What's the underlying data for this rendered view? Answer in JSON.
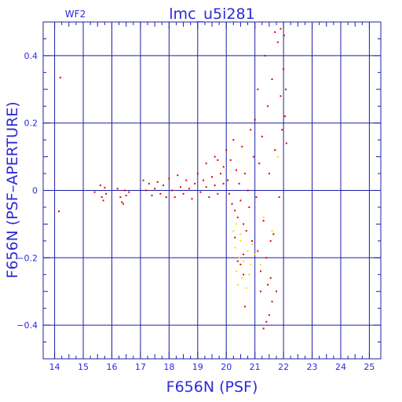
{
  "chart_data": {
    "type": "scatter",
    "title": "lmc_u5i281",
    "tag": "WF2",
    "xlabel": "F656N (PSF)",
    "ylabel": "F656N (PSF–APERTURE)",
    "xlim": [
      13.6,
      25.4
    ],
    "ylim": [
      -0.5,
      0.5
    ],
    "xticks": [
      14,
      15,
      16,
      17,
      18,
      19,
      20,
      21,
      22,
      23,
      24,
      25
    ],
    "yticks": [
      -0.4,
      -0.2,
      0,
      0.2,
      0.4
    ],
    "ytick_labels": [
      "−0.4",
      "−0.2",
      "0",
      "0.2",
      "0.4"
    ],
    "grid": true,
    "colors": {
      "axis": "#1f1fa8",
      "label": "#2b2bd6",
      "main": "#e00000",
      "minor": "#f2e200"
    },
    "series": [
      {
        "color": "#e00000",
        "points": [
          [
            14.2,
            0.335
          ],
          [
            14.15,
            -0.062
          ],
          [
            15.6,
            0.015
          ],
          [
            15.75,
            0.008
          ],
          [
            15.65,
            -0.02
          ],
          [
            15.8,
            -0.01
          ],
          [
            15.4,
            -0.005
          ],
          [
            15.7,
            -0.03
          ],
          [
            16.3,
            -0.02
          ],
          [
            16.4,
            -0.04
          ],
          [
            16.5,
            -0.015
          ],
          [
            16.6,
            -0.005
          ],
          [
            16.2,
            0.005
          ],
          [
            16.45,
            0.0
          ],
          [
            16.35,
            -0.035
          ],
          [
            17.1,
            0.03
          ],
          [
            17.2,
            0.0
          ],
          [
            17.3,
            0.02
          ],
          [
            17.4,
            -0.015
          ],
          [
            17.5,
            0.005
          ],
          [
            17.6,
            0.025
          ],
          [
            17.7,
            -0.01
          ],
          [
            17.8,
            0.015
          ],
          [
            17.9,
            -0.02
          ],
          [
            18.0,
            0.035
          ],
          [
            18.1,
            0.0
          ],
          [
            18.2,
            -0.02
          ],
          [
            18.3,
            0.045
          ],
          [
            18.4,
            0.01
          ],
          [
            18.5,
            -0.01
          ],
          [
            18.6,
            0.03
          ],
          [
            18.7,
            0.005
          ],
          [
            18.8,
            -0.025
          ],
          [
            18.9,
            0.02
          ],
          [
            19.0,
            0.05
          ],
          [
            19.1,
            -0.005
          ],
          [
            19.2,
            0.03
          ],
          [
            19.3,
            0.01
          ],
          [
            19.4,
            -0.02
          ],
          [
            19.5,
            0.04
          ],
          [
            19.6,
            0.015
          ],
          [
            19.7,
            -0.01
          ],
          [
            19.8,
            0.05
          ],
          [
            19.9,
            0.02
          ],
          [
            19.3,
            0.08
          ],
          [
            19.6,
            0.1
          ],
          [
            19.7,
            0.09
          ],
          [
            19.9,
            0.07
          ],
          [
            20.0,
            0.12
          ],
          [
            20.05,
            0.03
          ],
          [
            20.1,
            -0.01
          ],
          [
            20.15,
            0.09
          ],
          [
            20.2,
            -0.04
          ],
          [
            20.25,
            0.15
          ],
          [
            20.3,
            -0.06
          ],
          [
            20.35,
            0.06
          ],
          [
            20.4,
            -0.08
          ],
          [
            20.45,
            0.02
          ],
          [
            20.5,
            -0.03
          ],
          [
            20.55,
            0.13
          ],
          [
            20.6,
            -0.1
          ],
          [
            20.65,
            0.05
          ],
          [
            20.7,
            -0.12
          ],
          [
            20.75,
            0.0
          ],
          [
            20.8,
            -0.05
          ],
          [
            20.85,
            0.18
          ],
          [
            20.9,
            -0.15
          ],
          [
            20.95,
            0.1
          ],
          [
            20.4,
            -0.21
          ],
          [
            20.5,
            -0.22
          ],
          [
            20.6,
            -0.25
          ],
          [
            20.65,
            -0.345
          ],
          [
            20.3,
            -0.14
          ],
          [
            20.6,
            -0.19
          ],
          [
            21.0,
            0.21
          ],
          [
            21.05,
            -0.02
          ],
          [
            21.1,
            0.3
          ],
          [
            21.1,
            -0.18
          ],
          [
            21.15,
            0.08
          ],
          [
            21.2,
            -0.24
          ],
          [
            21.25,
            0.16
          ],
          [
            21.3,
            -0.09
          ],
          [
            21.35,
            0.4
          ],
          [
            21.4,
            -0.2
          ],
          [
            21.45,
            0.25
          ],
          [
            21.5,
            0.05
          ],
          [
            21.55,
            -0.26
          ],
          [
            21.6,
            0.33
          ],
          [
            21.65,
            -0.13
          ],
          [
            21.7,
            0.12
          ],
          [
            21.75,
            -0.3
          ],
          [
            21.8,
            0.44
          ],
          [
            21.85,
            -0.02
          ],
          [
            21.9,
            0.28
          ],
          [
            21.95,
            0.18
          ],
          [
            22.0,
            0.36
          ],
          [
            22.02,
            0.46
          ],
          [
            22.05,
            0.22
          ],
          [
            22.08,
            0.3
          ],
          [
            22.1,
            0.14
          ],
          [
            21.9,
            0.48
          ],
          [
            21.7,
            0.47
          ],
          [
            21.5,
            -0.37
          ],
          [
            21.4,
            -0.39
          ],
          [
            21.3,
            -0.41
          ],
          [
            21.6,
            -0.33
          ],
          [
            21.2,
            -0.3
          ],
          [
            21.45,
            -0.28
          ],
          [
            21.55,
            -0.15
          ]
        ]
      },
      {
        "color": "#f2e200",
        "points": [
          [
            20.25,
            -0.12
          ],
          [
            20.3,
            -0.17
          ],
          [
            20.35,
            -0.24
          ],
          [
            20.4,
            -0.28
          ],
          [
            20.45,
            -0.2
          ],
          [
            20.5,
            -0.15
          ],
          [
            20.55,
            -0.26
          ],
          [
            20.6,
            -0.21
          ],
          [
            20.7,
            -0.29
          ],
          [
            20.75,
            -0.18
          ],
          [
            20.8,
            -0.25
          ],
          [
            20.85,
            -0.22
          ],
          [
            20.9,
            -0.16
          ],
          [
            20.35,
            -0.1
          ],
          [
            20.5,
            -0.13
          ],
          [
            21.0,
            -0.19
          ],
          [
            21.2,
            -0.22
          ],
          [
            21.3,
            -0.08
          ],
          [
            21.6,
            -0.12
          ],
          [
            21.8,
            0.1
          ]
        ]
      }
    ]
  }
}
